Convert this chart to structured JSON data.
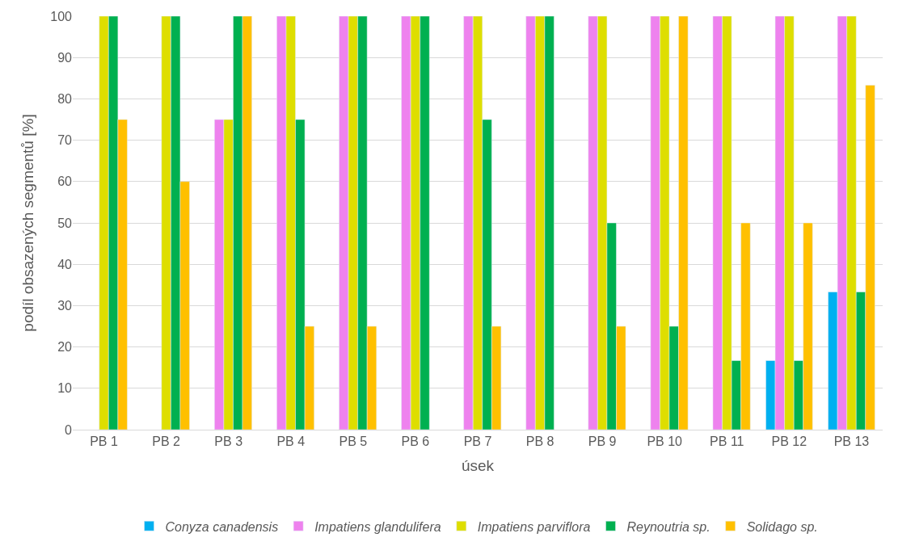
{
  "chart_data": {
    "type": "bar",
    "xlabel": "úsek",
    "ylabel": "podíl obsazených segmentů [%]",
    "categories": [
      "PB 1",
      "PB 2",
      "PB 3",
      "PB 4",
      "PB 5",
      "PB 6",
      "PB 7",
      "PB 8",
      "PB 9",
      "PB 10",
      "PB 11",
      "PB 12",
      "PB 13"
    ],
    "series": [
      {
        "name": "Conyza canadensis",
        "color": "#00b0f0",
        "values": [
          null,
          null,
          null,
          null,
          null,
          null,
          null,
          null,
          null,
          null,
          null,
          16.7,
          33.3
        ]
      },
      {
        "name": "Impatiens glandulifera",
        "color": "#ee82ee",
        "values": [
          null,
          null,
          75,
          100,
          100,
          100,
          100,
          100,
          100,
          100,
          100,
          100,
          100
        ]
      },
      {
        "name": "Impatiens parviflora",
        "color": "#dede00",
        "values": [
          100,
          100,
          75,
          100,
          100,
          100,
          100,
          100,
          100,
          100,
          100,
          100,
          100
        ]
      },
      {
        "name": "Reynoutria sp.",
        "color": "#00b050",
        "values": [
          100,
          100,
          100,
          75,
          100,
          100,
          75,
          100,
          50,
          25,
          16.7,
          16.7,
          33.3
        ]
      },
      {
        "name": "Solidago sp.",
        "color": "#ffc000",
        "values": [
          75,
          60,
          100,
          25,
          25,
          null,
          25,
          null,
          25,
          100,
          50,
          50,
          83.3
        ]
      }
    ],
    "ylim": [
      0,
      100
    ],
    "yticks": [
      0,
      10,
      20,
      30,
      40,
      50,
      60,
      70,
      80,
      90,
      100
    ],
    "grid": "y",
    "legend": "bottom"
  }
}
